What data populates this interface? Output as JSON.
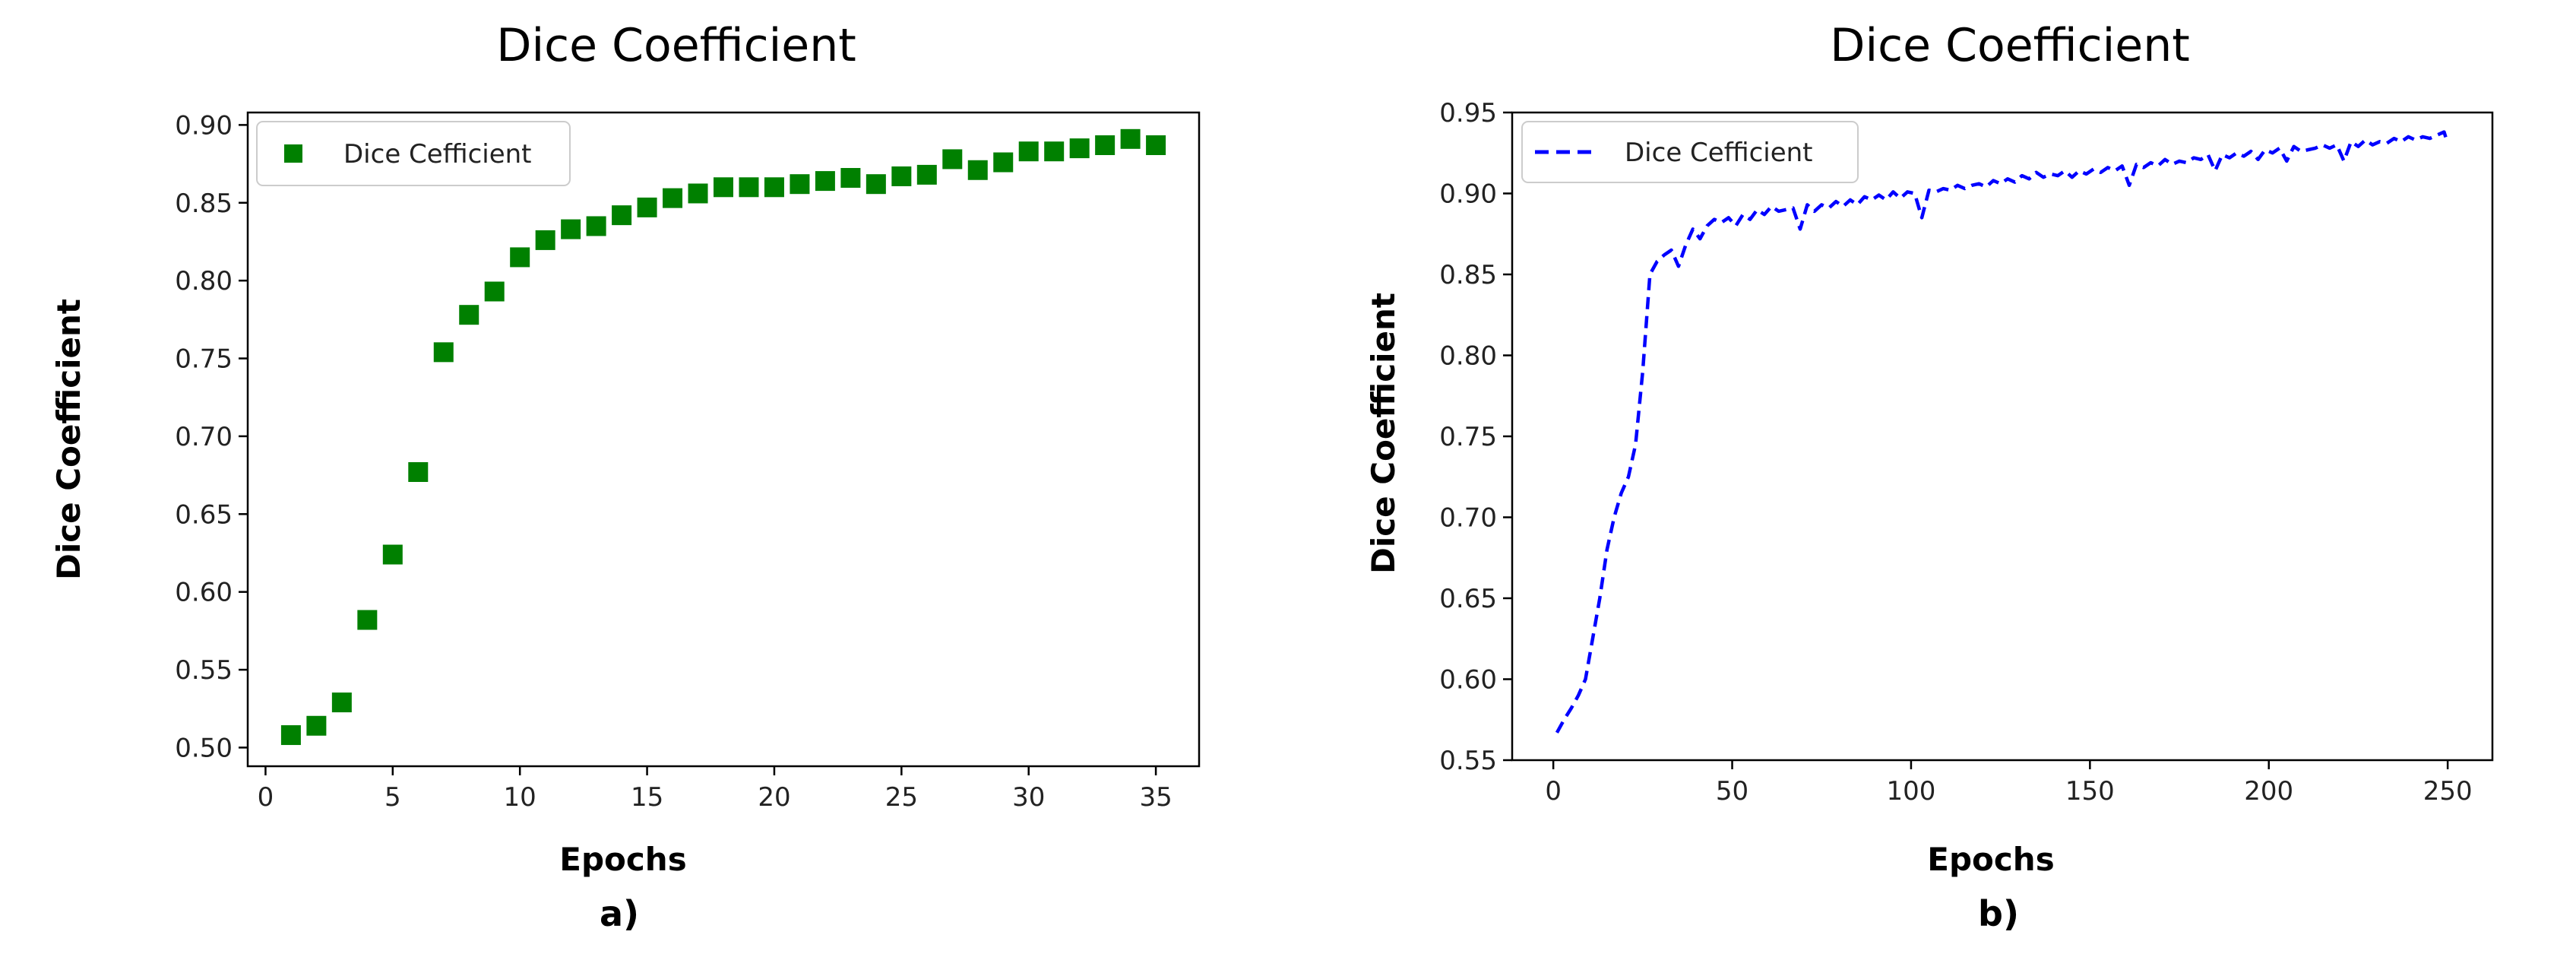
{
  "chart_data": [
    {
      "type": "scatter",
      "title": "Dice Coefficient",
      "xlabel": "Epochs",
      "ylabel": "Dice Coefficient",
      "caption": "a)",
      "xlim": [
        -0.7,
        36.7
      ],
      "ylim": [
        0.488,
        0.908
      ],
      "xticks": [
        0,
        5,
        10,
        15,
        20,
        25,
        30,
        35
      ],
      "yticks": [
        0.5,
        0.55,
        0.6,
        0.65,
        0.7,
        0.75,
        0.8,
        0.85,
        0.9
      ],
      "legend_position": "top-left",
      "grid": false,
      "series": [
        {
          "name": "Dice Cefficient",
          "color": "#008000",
          "marker": "square",
          "x": [
            1,
            2,
            3,
            4,
            5,
            6,
            7,
            8,
            9,
            10,
            11,
            12,
            13,
            14,
            15,
            16,
            17,
            18,
            19,
            20,
            21,
            22,
            23,
            24,
            25,
            26,
            27,
            28,
            29,
            30,
            31,
            32,
            33,
            34,
            35
          ],
          "y": [
            0.508,
            0.514,
            0.529,
            0.582,
            0.624,
            0.677,
            0.754,
            0.778,
            0.793,
            0.815,
            0.826,
            0.833,
            0.835,
            0.842,
            0.847,
            0.853,
            0.856,
            0.86,
            0.86,
            0.86,
            0.862,
            0.864,
            0.866,
            0.862,
            0.867,
            0.868,
            0.878,
            0.871,
            0.876,
            0.883,
            0.883,
            0.885,
            0.887,
            0.891,
            0.887
          ]
        }
      ]
    },
    {
      "type": "line",
      "title": "Dice Coefficient",
      "xlabel": "Epochs",
      "ylabel": "Dice Coefficient",
      "caption": "b)",
      "xlim": [
        -11.5,
        262.5
      ],
      "ylim": [
        0.55,
        0.95
      ],
      "xticks": [
        0,
        50,
        100,
        150,
        200,
        250
      ],
      "yticks": [
        0.55,
        0.6,
        0.65,
        0.7,
        0.75,
        0.8,
        0.85,
        0.9,
        0.95
      ],
      "legend_position": "top-left",
      "grid": false,
      "series": [
        {
          "name": "Dice Cefficient",
          "color": "#0000ff",
          "line_style": "dashed",
          "x": [
            1,
            3,
            5,
            7,
            9,
            11,
            13,
            15,
            17,
            19,
            21,
            23,
            25,
            27,
            29,
            31,
            33,
            35,
            37,
            39,
            41,
            43,
            45,
            47,
            49,
            51,
            53,
            55,
            57,
            59,
            61,
            63,
            65,
            67,
            69,
            71,
            73,
            75,
            77,
            79,
            81,
            83,
            85,
            87,
            89,
            91,
            93,
            95,
            97,
            99,
            101,
            103,
            105,
            107,
            109,
            111,
            113,
            115,
            117,
            119,
            121,
            123,
            125,
            127,
            129,
            131,
            133,
            135,
            137,
            139,
            141,
            143,
            145,
            147,
            149,
            151,
            153,
            155,
            157,
            159,
            161,
            163,
            165,
            167,
            169,
            171,
            173,
            175,
            177,
            179,
            181,
            183,
            185,
            187,
            189,
            191,
            193,
            195,
            197,
            199,
            201,
            203,
            205,
            207,
            209,
            211,
            213,
            215,
            217,
            219,
            221,
            223,
            225,
            227,
            229,
            231,
            233,
            235,
            237,
            239,
            241,
            243,
            245,
            247,
            249,
            250
          ],
          "y": [
            0.567,
            0.575,
            0.582,
            0.59,
            0.6,
            0.625,
            0.65,
            0.68,
            0.7,
            0.715,
            0.725,
            0.745,
            0.79,
            0.85,
            0.858,
            0.862,
            0.865,
            0.855,
            0.868,
            0.878,
            0.872,
            0.88,
            0.884,
            0.882,
            0.885,
            0.88,
            0.887,
            0.884,
            0.89,
            0.887,
            0.892,
            0.889,
            0.89,
            0.891,
            0.878,
            0.893,
            0.889,
            0.893,
            0.891,
            0.895,
            0.892,
            0.896,
            0.893,
            0.898,
            0.896,
            0.899,
            0.896,
            0.901,
            0.897,
            0.901,
            0.9,
            0.885,
            0.902,
            0.901,
            0.903,
            0.902,
            0.905,
            0.903,
            0.905,
            0.906,
            0.904,
            0.908,
            0.906,
            0.909,
            0.907,
            0.911,
            0.909,
            0.913,
            0.91,
            0.912,
            0.911,
            0.914,
            0.91,
            0.914,
            0.912,
            0.915,
            0.913,
            0.916,
            0.914,
            0.917,
            0.905,
            0.918,
            0.916,
            0.919,
            0.917,
            0.921,
            0.918,
            0.92,
            0.919,
            0.922,
            0.921,
            0.924,
            0.914,
            0.924,
            0.922,
            0.925,
            0.923,
            0.926,
            0.921,
            0.927,
            0.925,
            0.928,
            0.92,
            0.929,
            0.926,
            0.927,
            0.928,
            0.93,
            0.928,
            0.93,
            0.92,
            0.932,
            0.929,
            0.933,
            0.93,
            0.932,
            0.931,
            0.934,
            0.932,
            0.935,
            0.933,
            0.935,
            0.934,
            0.936,
            0.938,
            0.931
          ]
        }
      ]
    }
  ]
}
